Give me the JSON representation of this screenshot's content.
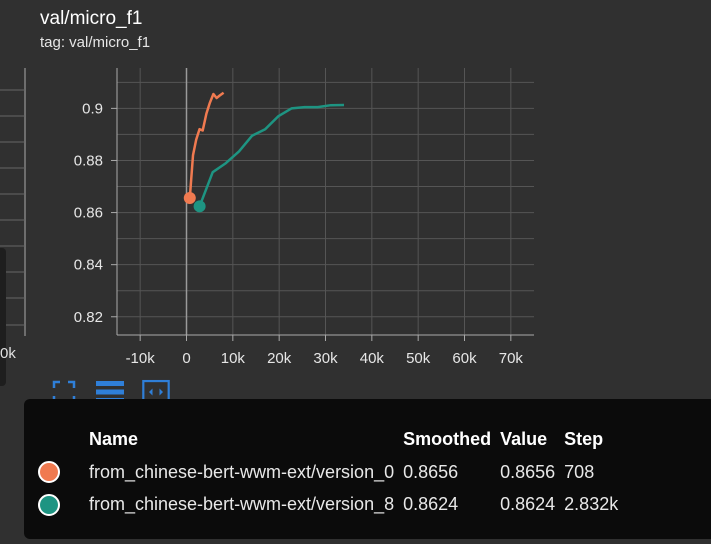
{
  "header": {
    "title": "val/micro_f1",
    "subtitle": "tag: val/micro_f1"
  },
  "left_panel": {
    "tick_label": "0k"
  },
  "toolbar": {
    "icons": [
      "fit-domain-icon",
      "toggle-log-scale-icon",
      "expand-chart-icon"
    ]
  },
  "tooltip": {
    "headers": {
      "name": "Name",
      "smoothed": "Smoothed",
      "value": "Value",
      "step": "Step"
    },
    "rows": [
      {
        "color": "#f07a50",
        "name": "from_chinese-bert-wwm-ext/version_0",
        "smoothed": "0.8656",
        "value": "0.8656",
        "step": "708"
      },
      {
        "color": "#1e9482",
        "name": "from_chinese-bert-wwm-ext/version_8",
        "smoothed": "0.8624",
        "value": "0.8624",
        "step": "2.832k"
      }
    ]
  },
  "chart_data": {
    "type": "line",
    "title": "val/micro_f1",
    "subtitle": "tag: val/micro_f1",
    "xlim": [
      -15000,
      75000
    ],
    "ylim": [
      0.813,
      0.9155
    ],
    "x_ticks": [
      -10000,
      0,
      10000,
      20000,
      30000,
      40000,
      50000,
      60000,
      70000
    ],
    "x_tick_labels": [
      "-10k",
      "0",
      "10k",
      "20k",
      "30k",
      "40k",
      "50k",
      "60k",
      "70k"
    ],
    "y_ticks": [
      0.82,
      0.84,
      0.86,
      0.88,
      0.9
    ],
    "y_tick_labels": [
      "0.82",
      "0.84",
      "0.86",
      "0.88",
      "0.9"
    ],
    "grid": true,
    "series": [
      {
        "name": "from_chinese-bert-wwm-ext/version_0",
        "color": "#f07a50",
        "x": [
          708,
          1400,
          2100,
          2800,
          3500,
          4300,
          5000,
          5800,
          6500,
          7200,
          8000
        ],
        "y": [
          0.8656,
          0.882,
          0.888,
          0.892,
          0.8915,
          0.898,
          0.902,
          0.9055,
          0.904,
          0.905,
          0.906
        ],
        "highlight": {
          "x": 708,
          "y": 0.8656
        }
      },
      {
        "name": "from_chinese-bert-wwm-ext/version_8",
        "color": "#1e9482",
        "x": [
          2832,
          5664,
          8496,
          11328,
          14160,
          16992,
          19824,
          22656,
          25488,
          28320,
          31152,
          33984
        ],
        "y": [
          0.8624,
          0.8755,
          0.879,
          0.8835,
          0.8895,
          0.892,
          0.897,
          0.9,
          0.9005,
          0.9005,
          0.9012,
          0.9013
        ],
        "highlight": {
          "x": 2832,
          "y": 0.8624
        }
      }
    ]
  }
}
